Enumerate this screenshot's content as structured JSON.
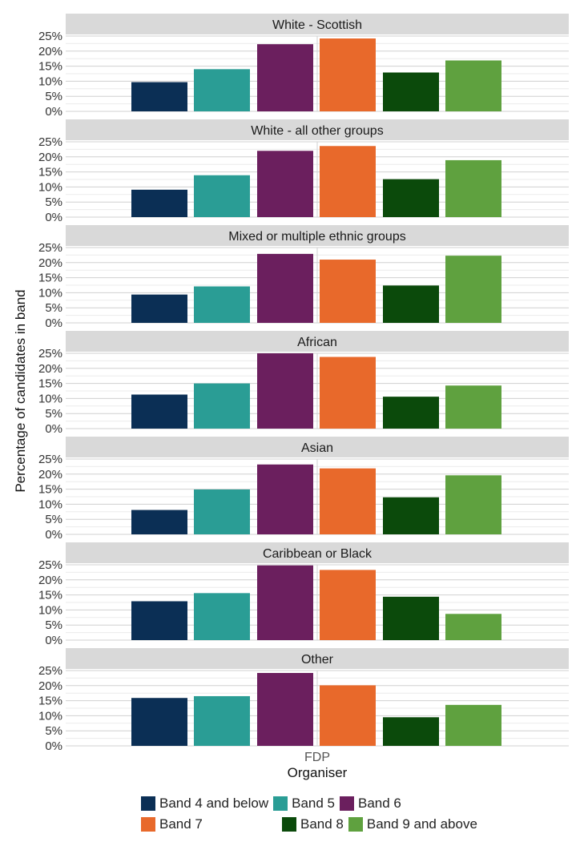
{
  "chart_data": {
    "type": "bar",
    "ylabel": "Percentage of candidates in band",
    "xlabel": "Organiser",
    "x_category": "FDP",
    "ylim": [
      0,
      25
    ],
    "yticks": [
      "0%",
      "5%",
      "10%",
      "15%",
      "20%",
      "25%"
    ],
    "grid": true,
    "legend_position": "bottom",
    "series": [
      {
        "name": "Band 4 and below",
        "color": "#0b2f55"
      },
      {
        "name": "Band 5",
        "color": "#2a9d95"
      },
      {
        "name": "Band 6",
        "color": "#6b1f5e"
      },
      {
        "name": "Band 7",
        "color": "#e8692b"
      },
      {
        "name": "Band 8",
        "color": "#0b4a0b"
      },
      {
        "name": "Band 9 and above",
        "color": "#5fa13f"
      }
    ],
    "panels": [
      {
        "title": "White - Scottish",
        "values": [
          9.7,
          14.0,
          22.3,
          24.2,
          12.9,
          16.9
        ]
      },
      {
        "title": "White - all other groups",
        "values": [
          9.1,
          13.9,
          22.0,
          23.6,
          12.6,
          18.9
        ]
      },
      {
        "title": "Mixed or multiple ethnic groups",
        "values": [
          9.4,
          12.1,
          22.9,
          21.0,
          12.4,
          22.3
        ]
      },
      {
        "title": "African",
        "values": [
          11.3,
          15.0,
          25.0,
          23.8,
          10.6,
          14.3
        ]
      },
      {
        "title": "Asian",
        "values": [
          8.1,
          14.9,
          23.2,
          21.9,
          12.3,
          19.6
        ]
      },
      {
        "title": "Caribbean or Black",
        "values": [
          12.9,
          15.6,
          24.8,
          23.3,
          14.4,
          8.7
        ]
      },
      {
        "title": "Other",
        "values": [
          15.9,
          16.5,
          24.2,
          20.1,
          9.5,
          13.6
        ]
      }
    ]
  }
}
